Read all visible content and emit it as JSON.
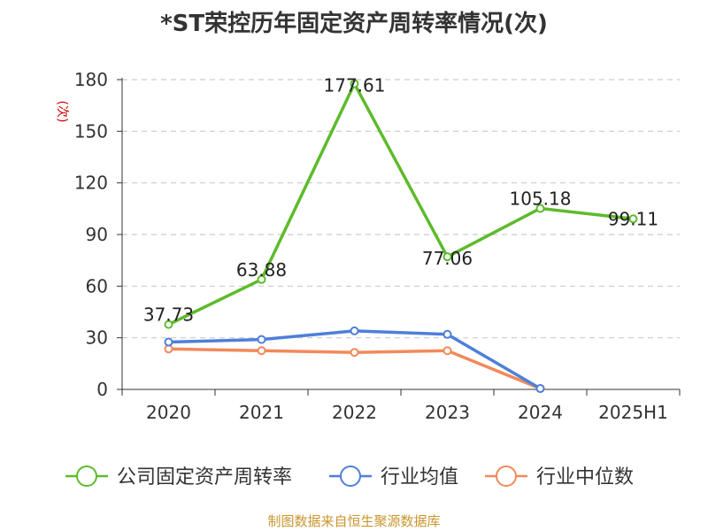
{
  "chart_data": {
    "type": "line",
    "title": "*ST荣控历年固定资产周转率情况(次)",
    "ylabel": "(次)",
    "xlabel": "",
    "categories": [
      "2020",
      "2021",
      "2022",
      "2023",
      "2024",
      "2025H1"
    ],
    "ylim": [
      0,
      180
    ],
    "yticks": [
      0,
      30,
      60,
      90,
      120,
      150,
      180
    ],
    "grid": true,
    "legend_position": "bottom",
    "series": [
      {
        "name": "公司固定资产周转率",
        "color": "#5dbb2c",
        "values": [
          37.73,
          63.88,
          177.61,
          77.06,
          105.18,
          99.11
        ],
        "labels": [
          "37.73",
          "63.88",
          "177.61",
          "77.06",
          "105.18",
          "99.11"
        ]
      },
      {
        "name": "行业均值",
        "color": "#4e7fd9",
        "values": [
          27.5,
          29,
          34,
          32,
          0.5,
          null
        ]
      },
      {
        "name": "行业中位数",
        "color": "#f2895a",
        "values": [
          23.5,
          22.5,
          21.5,
          22.5,
          0.5,
          null
        ]
      }
    ]
  },
  "footer": {
    "source": "制图数据来自恒生聚源数据库"
  }
}
